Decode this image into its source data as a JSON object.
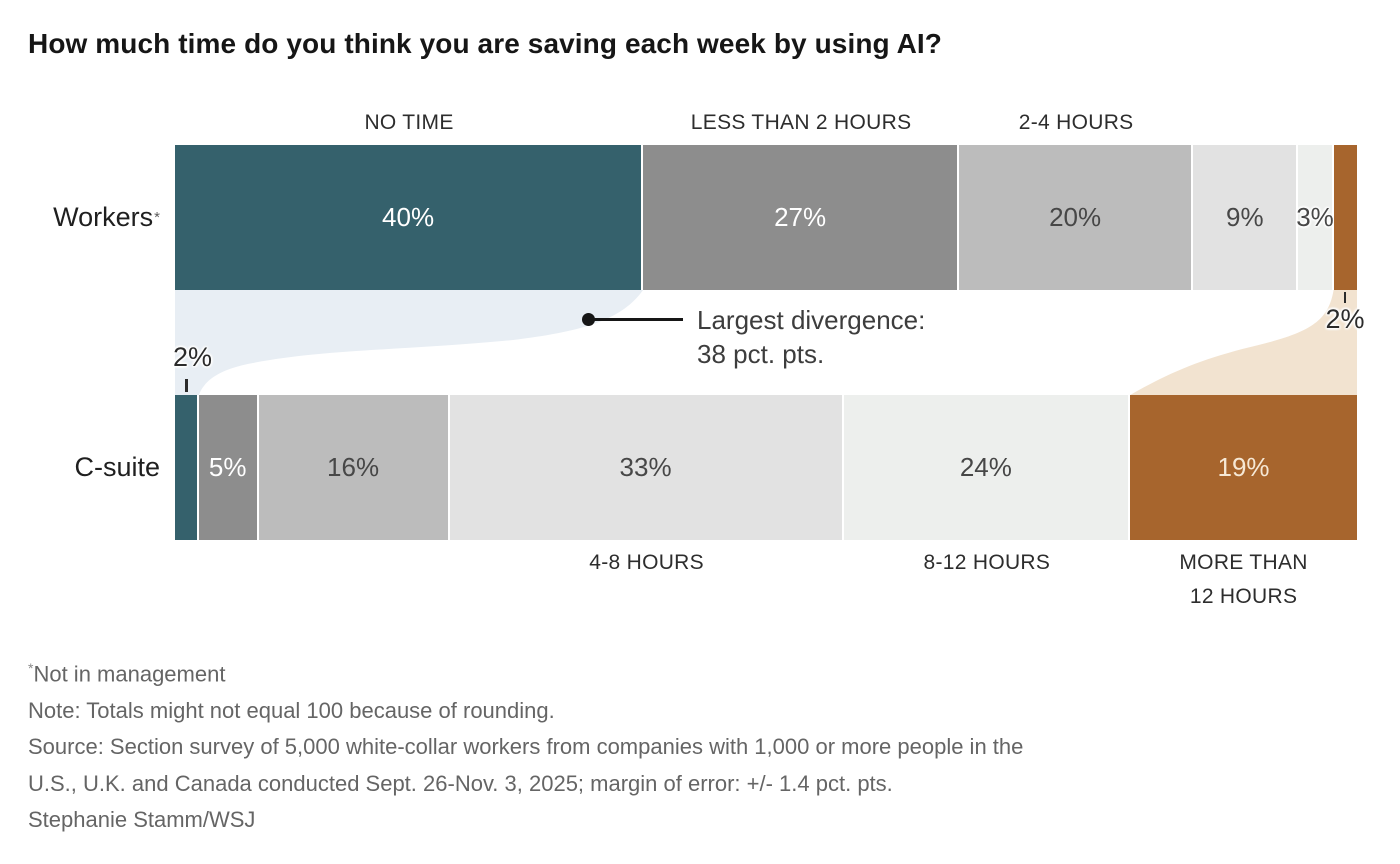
{
  "title": "How much time do you think you are saving each week by using AI?",
  "colors": {
    "no_time": "#35616c",
    "less_than_2": "#8d8d8d",
    "hours_2_4": "#bcbcbc",
    "hours_4_8": "#e2e2e2",
    "hours_8_12": "#edefed",
    "more_than_12": "#a7652d",
    "flow_no_time": "#e8eef4",
    "flow_more_than_12": "#f2e3d0",
    "background": "#ffffff"
  },
  "chart_data": {
    "type": "bar",
    "variant": "horizontal-stacked-percent",
    "unit": "%",
    "categories": [
      "NO TIME",
      "LESS THAN 2 HOURS",
      "2-4 HOURS",
      "4-8 HOURS",
      "8-12 HOURS",
      "MORE THAN 12 HOURS"
    ],
    "category_colors": [
      "#35616c",
      "#8d8d8d",
      "#bcbcbc",
      "#e2e2e2",
      "#edefed",
      "#a7652d"
    ],
    "series": [
      {
        "name": "Workers*",
        "segments": [
          {
            "category": "NO TIME",
            "value": 40,
            "label": "40%",
            "tone": "light"
          },
          {
            "category": "LESS THAN 2 HOURS",
            "value": 27,
            "label": "27%",
            "tone": "light"
          },
          {
            "category": "2-4 HOURS",
            "value": 20,
            "label": "20%",
            "tone": "dark"
          },
          {
            "category": "4-8 HOURS",
            "value": 9,
            "label": "9%",
            "tone": "dark"
          },
          {
            "category": "8-12 HOURS",
            "value": 3,
            "label": "3%",
            "tone": "dark",
            "halo": true
          },
          {
            "category": "MORE THAN 12 HOURS",
            "value": 2,
            "label": "",
            "tone": "light"
          }
        ]
      },
      {
        "name": "C-suite",
        "segments": [
          {
            "category": "NO TIME",
            "value": 2,
            "label": "",
            "tone": "light"
          },
          {
            "category": "LESS THAN 2 HOURS",
            "value": 5,
            "label": "5%",
            "tone": "light"
          },
          {
            "category": "2-4 HOURS",
            "value": 16,
            "label": "16%",
            "tone": "dark"
          },
          {
            "category": "4-8 HOURS",
            "value": 33,
            "label": "33%",
            "tone": "dark"
          },
          {
            "category": "8-12 HOURS",
            "value": 24,
            "label": "24%",
            "tone": "dark"
          },
          {
            "category": "MORE THAN 12 HOURS",
            "value": 19,
            "label": "19%",
            "tone": "cream"
          }
        ]
      }
    ],
    "axis_labels": {
      "top": [
        {
          "text": "NO TIME",
          "segment": 0
        },
        {
          "text": "LESS THAN 2 HOURS",
          "segment": 1
        },
        {
          "text": "2-4 HOURS",
          "segment": 2
        }
      ],
      "bottom": [
        {
          "text": "4-8 HOURS",
          "segment": 3
        },
        {
          "text": "8-12 HOURS",
          "segment": 4
        },
        {
          "text": "MORE THAN\n12 HOURS",
          "segment": 5
        }
      ]
    },
    "annotations": {
      "divergence": {
        "line1": "Largest divergence:",
        "line2": "38 pct. pts."
      },
      "workers_more_than_12": {
        "label": "2%"
      },
      "csuite_no_time": {
        "label": "2%"
      }
    }
  },
  "footer": {
    "lines": [
      "*Not in management",
      "Note: Totals might not equal 100 because of rounding.",
      "Source: Section survey of 5,000 white-collar workers from companies with 1,000 or more people in the",
      "U.S., U.K. and Canada conducted Sept. 26-Nov. 3, 2025; margin of error: +/- 1.4 pct. pts.",
      "Stephanie Stamm/WSJ"
    ]
  }
}
